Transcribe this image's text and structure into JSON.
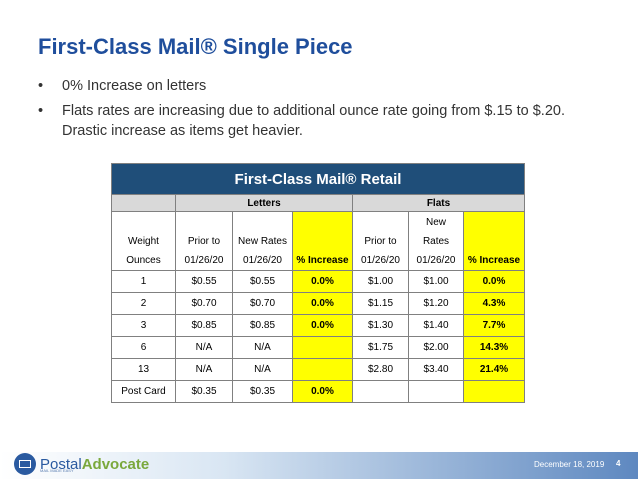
{
  "slide": {
    "title": "First-Class Mail® Single Piece",
    "bullets": [
      "0% Increase on letters",
      "Flats rates are increasing due to additional ounce rate going from $.15 to $.20.  Drastic increase as items get heavier."
    ],
    "bullet_glyph": "•"
  },
  "table": {
    "title": "First-Class Mail® Retail",
    "groups": {
      "letters": "Letters",
      "flats": "Flats"
    },
    "headers": {
      "weight": [
        "Weight",
        "Ounces"
      ],
      "letters_prior": [
        "Prior to",
        "01/26/20"
      ],
      "letters_new": [
        "New Rates",
        "01/26/20"
      ],
      "letters_pct": "% Increase",
      "flats_prior": [
        "Prior to",
        "01/26/20"
      ],
      "flats_new": [
        "New",
        "Rates",
        "01/26/20"
      ],
      "flats_pct": "% Increase"
    },
    "rows": [
      {
        "weight": "1",
        "l_prior": "$0.55",
        "l_new": "$0.55",
        "l_pct": "0.0%",
        "f_prior": "$1.00",
        "f_new": "$1.00",
        "f_pct": "0.0%"
      },
      {
        "weight": "2",
        "l_prior": "$0.70",
        "l_new": "$0.70",
        "l_pct": "0.0%",
        "f_prior": "$1.15",
        "f_new": "$1.20",
        "f_pct": "4.3%"
      },
      {
        "weight": "3",
        "l_prior": "$0.85",
        "l_new": "$0.85",
        "l_pct": "0.0%",
        "f_prior": "$1.30",
        "f_new": "$1.40",
        "f_pct": "7.7%"
      },
      {
        "weight": "6",
        "l_prior": "N/A",
        "l_new": "N/A",
        "l_pct": "",
        "f_prior": "$1.75",
        "f_new": "$2.00",
        "f_pct": "14.3%"
      },
      {
        "weight": "13",
        "l_prior": "N/A",
        "l_new": "N/A",
        "l_pct": "",
        "f_prior": "$2.80",
        "f_new": "$3.40",
        "f_pct": "21.4%"
      },
      {
        "weight": "Post Card",
        "l_prior": "$0.35",
        "l_new": "$0.35",
        "l_pct": "0.0%",
        "f_prior": "",
        "f_new": "",
        "f_pct": ""
      }
    ]
  },
  "footer": {
    "logo_prefix": "Postal",
    "logo_suffix": "Advocate",
    "logo_tagline": "MAIL MADE EASY",
    "date": "December 18, 2019",
    "page": "4"
  },
  "colors": {
    "title": "#1f4e9c",
    "table_header": "#1f4e79",
    "highlight": "#ffff00"
  }
}
